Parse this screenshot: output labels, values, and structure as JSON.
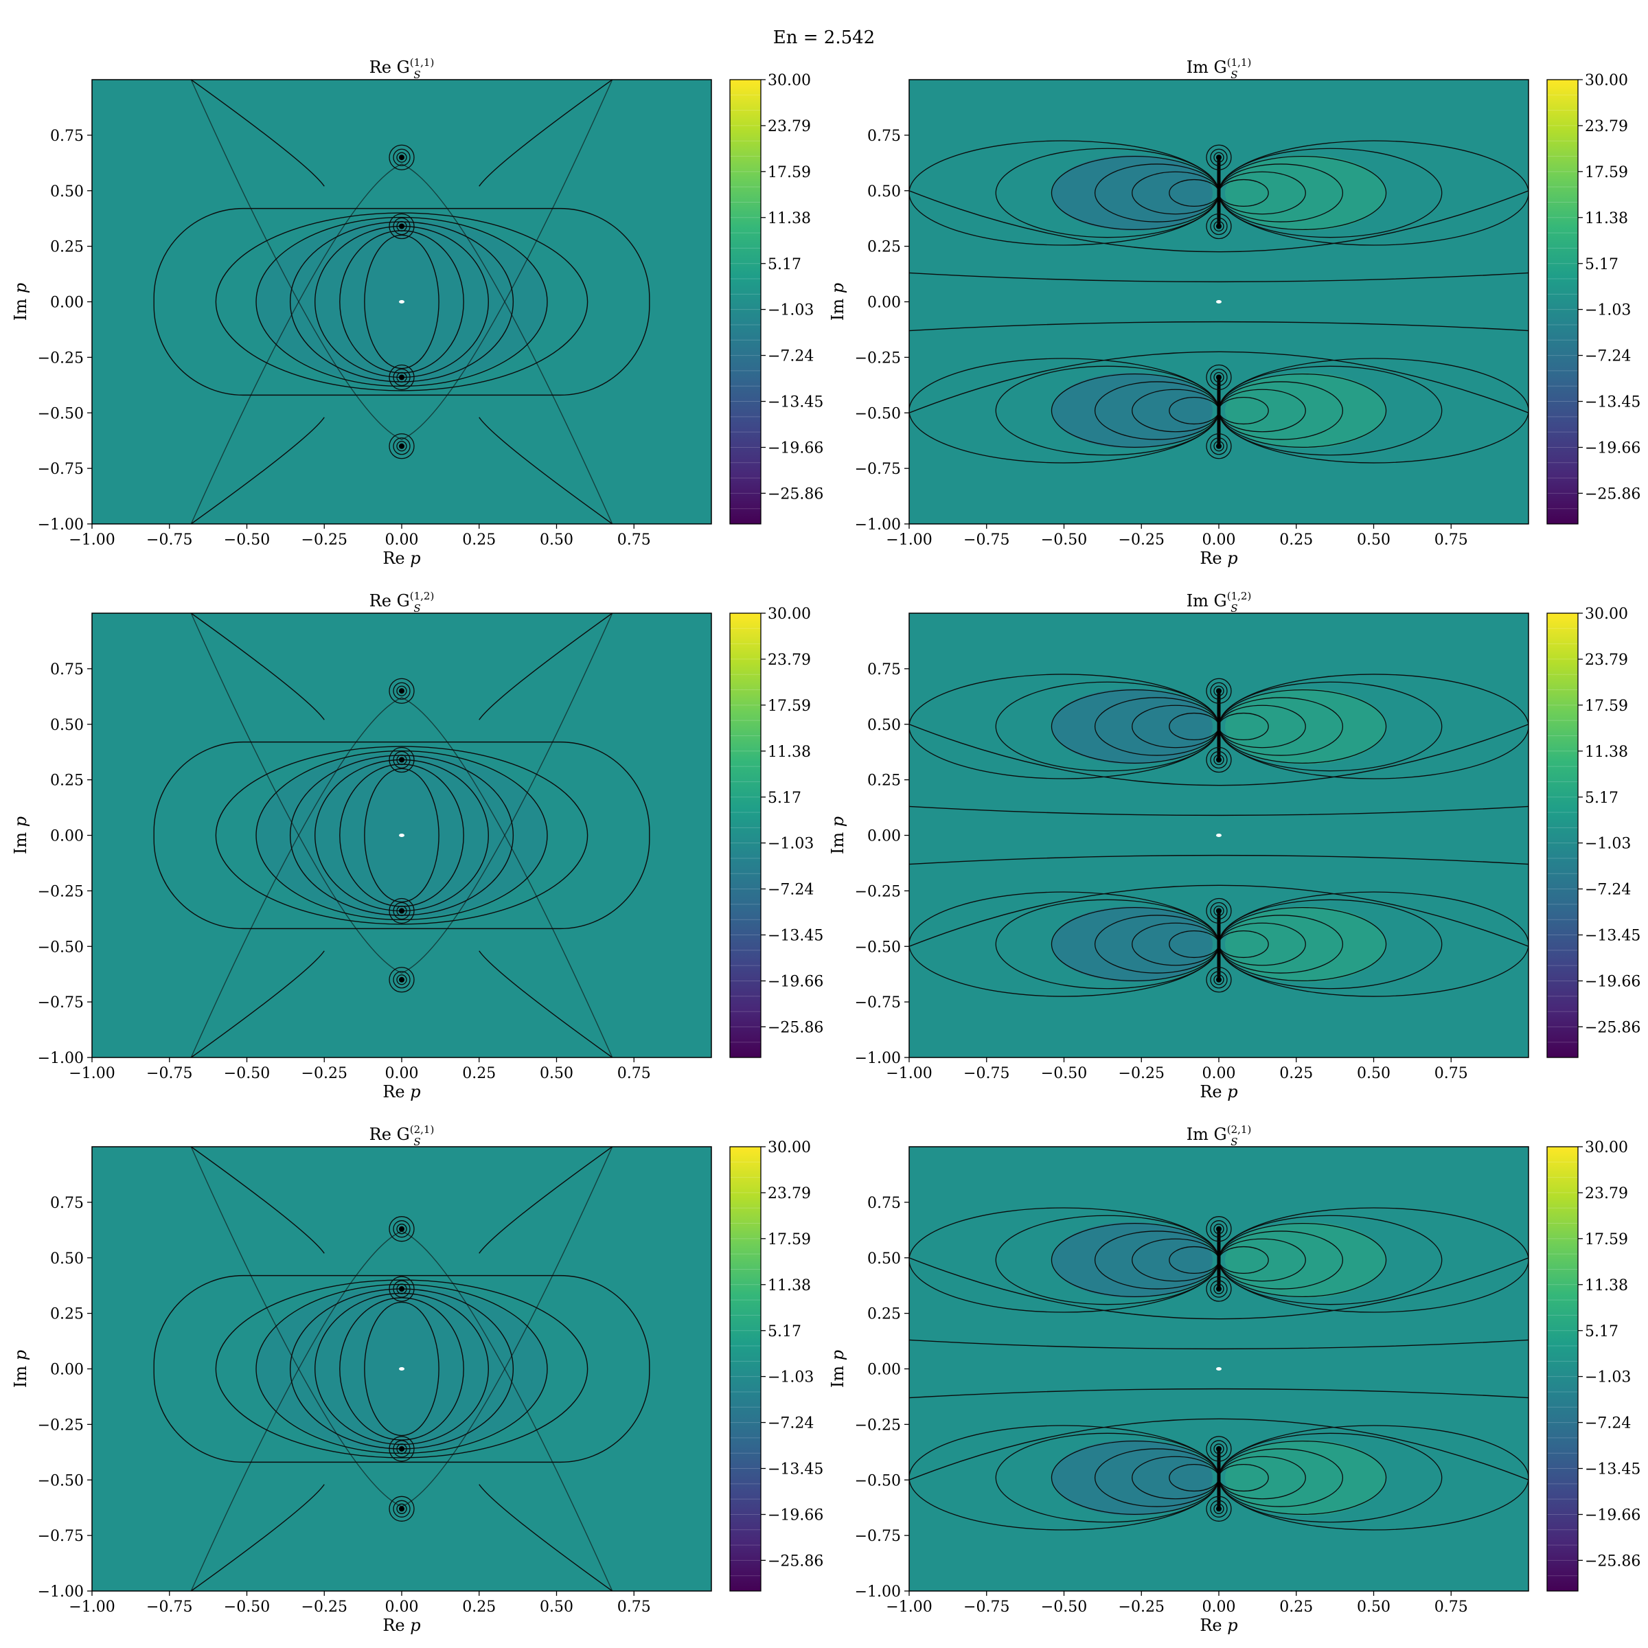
{
  "figure": {
    "suptitle": "En = 2.542"
  },
  "colormap": {
    "name": "viridis",
    "field_color": "#21918c",
    "line_color": "#0b0b0b",
    "stops": [
      "#440154",
      "#482878",
      "#3e4989",
      "#31688e",
      "#26828e",
      "#1f9e89",
      "#35b779",
      "#6ece58",
      "#b5de2b",
      "#fde725"
    ]
  },
  "chart_data": [
    {
      "type": "heatmap",
      "panel": "re11",
      "part": "Re",
      "title_prefix": "Re G",
      "title_sub": "S",
      "title_sup": "(1,1)",
      "xlabel_prefix": "Re",
      "xlabel_var": "p",
      "ylabel_prefix": "Im",
      "ylabel_var": "p",
      "xlim": [
        -1.0,
        1.0
      ],
      "ylim": [
        -1.0,
        1.0
      ],
      "xticks": [
        "−1.00",
        "−0.75",
        "−0.50",
        "−0.25",
        "0.00",
        "0.25",
        "0.50",
        "0.75"
      ],
      "yticks": [
        "−1.00",
        "−0.75",
        "−0.50",
        "−0.25",
        "0.00",
        "0.25",
        "0.50",
        "0.75"
      ],
      "colorbar_range": [
        -30,
        30
      ],
      "colorbar_ticks": [
        "30.00",
        "23.79",
        "17.59",
        "11.38",
        "5.17",
        "−1.03",
        "−7.24",
        "−13.45",
        "−19.66",
        "−25.86"
      ],
      "poles": [
        0.34,
        -0.34,
        0.65,
        -0.65
      ]
    },
    {
      "type": "heatmap",
      "panel": "im11",
      "part": "Im",
      "title_prefix": "Im G",
      "title_sub": "S",
      "title_sup": "(1,1)",
      "xlabel_prefix": "Re",
      "xlabel_var": "p",
      "ylabel_prefix": "Im",
      "ylabel_var": "p",
      "xlim": [
        -1.0,
        1.0
      ],
      "ylim": [
        -1.0,
        1.0
      ],
      "xticks": [
        "−1.00",
        "−0.75",
        "−0.50",
        "−0.25",
        "0.00",
        "0.25",
        "0.50",
        "0.75"
      ],
      "yticks": [
        "−1.00",
        "−0.75",
        "−0.50",
        "−0.25",
        "0.00",
        "0.25",
        "0.50",
        "0.75"
      ],
      "colorbar_range": [
        -30,
        30
      ],
      "colorbar_ticks": [
        "30.00",
        "23.79",
        "17.59",
        "11.38",
        "5.17",
        "−1.03",
        "−7.24",
        "−13.45",
        "−19.66",
        "−25.86"
      ],
      "poles": [
        0.34,
        -0.34,
        0.65,
        -0.65
      ]
    },
    {
      "type": "heatmap",
      "panel": "re12",
      "part": "Re",
      "title_prefix": "Re G",
      "title_sub": "S",
      "title_sup": "(1,2)",
      "xlabel_prefix": "Re",
      "xlabel_var": "p",
      "ylabel_prefix": "Im",
      "ylabel_var": "p",
      "xlim": [
        -1.0,
        1.0
      ],
      "ylim": [
        -1.0,
        1.0
      ],
      "xticks": [
        "−1.00",
        "−0.75",
        "−0.50",
        "−0.25",
        "0.00",
        "0.25",
        "0.50",
        "0.75"
      ],
      "yticks": [
        "−1.00",
        "−0.75",
        "−0.50",
        "−0.25",
        "0.00",
        "0.25",
        "0.50",
        "0.75"
      ],
      "colorbar_range": [
        -30,
        30
      ],
      "colorbar_ticks": [
        "30.00",
        "23.79",
        "17.59",
        "11.38",
        "5.17",
        "−1.03",
        "−7.24",
        "−13.45",
        "−19.66",
        "−25.86"
      ],
      "poles": [
        0.34,
        -0.34,
        0.65,
        -0.65
      ]
    },
    {
      "type": "heatmap",
      "panel": "im12",
      "part": "Im",
      "title_prefix": "Im G",
      "title_sub": "S",
      "title_sup": "(1,2)",
      "xlabel_prefix": "Re",
      "xlabel_var": "p",
      "ylabel_prefix": "Im",
      "ylabel_var": "p",
      "xlim": [
        -1.0,
        1.0
      ],
      "ylim": [
        -1.0,
        1.0
      ],
      "xticks": [
        "−1.00",
        "−0.75",
        "−0.50",
        "−0.25",
        "0.00",
        "0.25",
        "0.50",
        "0.75"
      ],
      "yticks": [
        "−1.00",
        "−0.75",
        "−0.50",
        "−0.25",
        "0.00",
        "0.25",
        "0.50",
        "0.75"
      ],
      "colorbar_range": [
        -30,
        30
      ],
      "colorbar_ticks": [
        "30.00",
        "23.79",
        "17.59",
        "11.38",
        "5.17",
        "−1.03",
        "−7.24",
        "−13.45",
        "−19.66",
        "−25.86"
      ],
      "poles": [
        0.34,
        -0.34,
        0.65,
        -0.65
      ]
    },
    {
      "type": "heatmap",
      "panel": "re21",
      "part": "Re",
      "title_prefix": "Re G",
      "title_sub": "S",
      "title_sup": "(2,1)",
      "xlabel_prefix": "Re",
      "xlabel_var": "p",
      "ylabel_prefix": "Im",
      "ylabel_var": "p",
      "xlim": [
        -1.0,
        1.0
      ],
      "ylim": [
        -1.0,
        1.0
      ],
      "xticks": [
        "−1.00",
        "−0.75",
        "−0.50",
        "−0.25",
        "0.00",
        "0.25",
        "0.50",
        "0.75"
      ],
      "yticks": [
        "−1.00",
        "−0.75",
        "−0.50",
        "−0.25",
        "0.00",
        "0.25",
        "0.50",
        "0.75"
      ],
      "colorbar_range": [
        -30,
        30
      ],
      "colorbar_ticks": [
        "30.00",
        "23.79",
        "17.59",
        "11.38",
        "5.17",
        "−1.03",
        "−7.24",
        "−13.45",
        "−19.66",
        "−25.86"
      ],
      "poles": [
        0.36,
        -0.36,
        0.63,
        -0.63
      ]
    },
    {
      "type": "heatmap",
      "panel": "im21",
      "part": "Im",
      "title_prefix": "Im G",
      "title_sub": "S",
      "title_sup": "(2,1)",
      "xlabel_prefix": "Re",
      "xlabel_var": "p",
      "ylabel_prefix": "Im",
      "ylabel_var": "p",
      "xlim": [
        -1.0,
        1.0
      ],
      "ylim": [
        -1.0,
        1.0
      ],
      "xticks": [
        "−1.00",
        "−0.75",
        "−0.50",
        "−0.25",
        "0.00",
        "0.25",
        "0.50",
        "0.75"
      ],
      "yticks": [
        "−1.00",
        "−0.75",
        "−0.50",
        "−0.25",
        "0.00",
        "0.25",
        "0.50",
        "0.75"
      ],
      "colorbar_range": [
        -30,
        30
      ],
      "colorbar_ticks": [
        "30.00",
        "23.79",
        "17.59",
        "11.38",
        "5.17",
        "−1.03",
        "−7.24",
        "−13.45",
        "−19.66",
        "−25.86"
      ],
      "poles": [
        0.36,
        -0.36,
        0.63,
        -0.63
      ]
    }
  ]
}
